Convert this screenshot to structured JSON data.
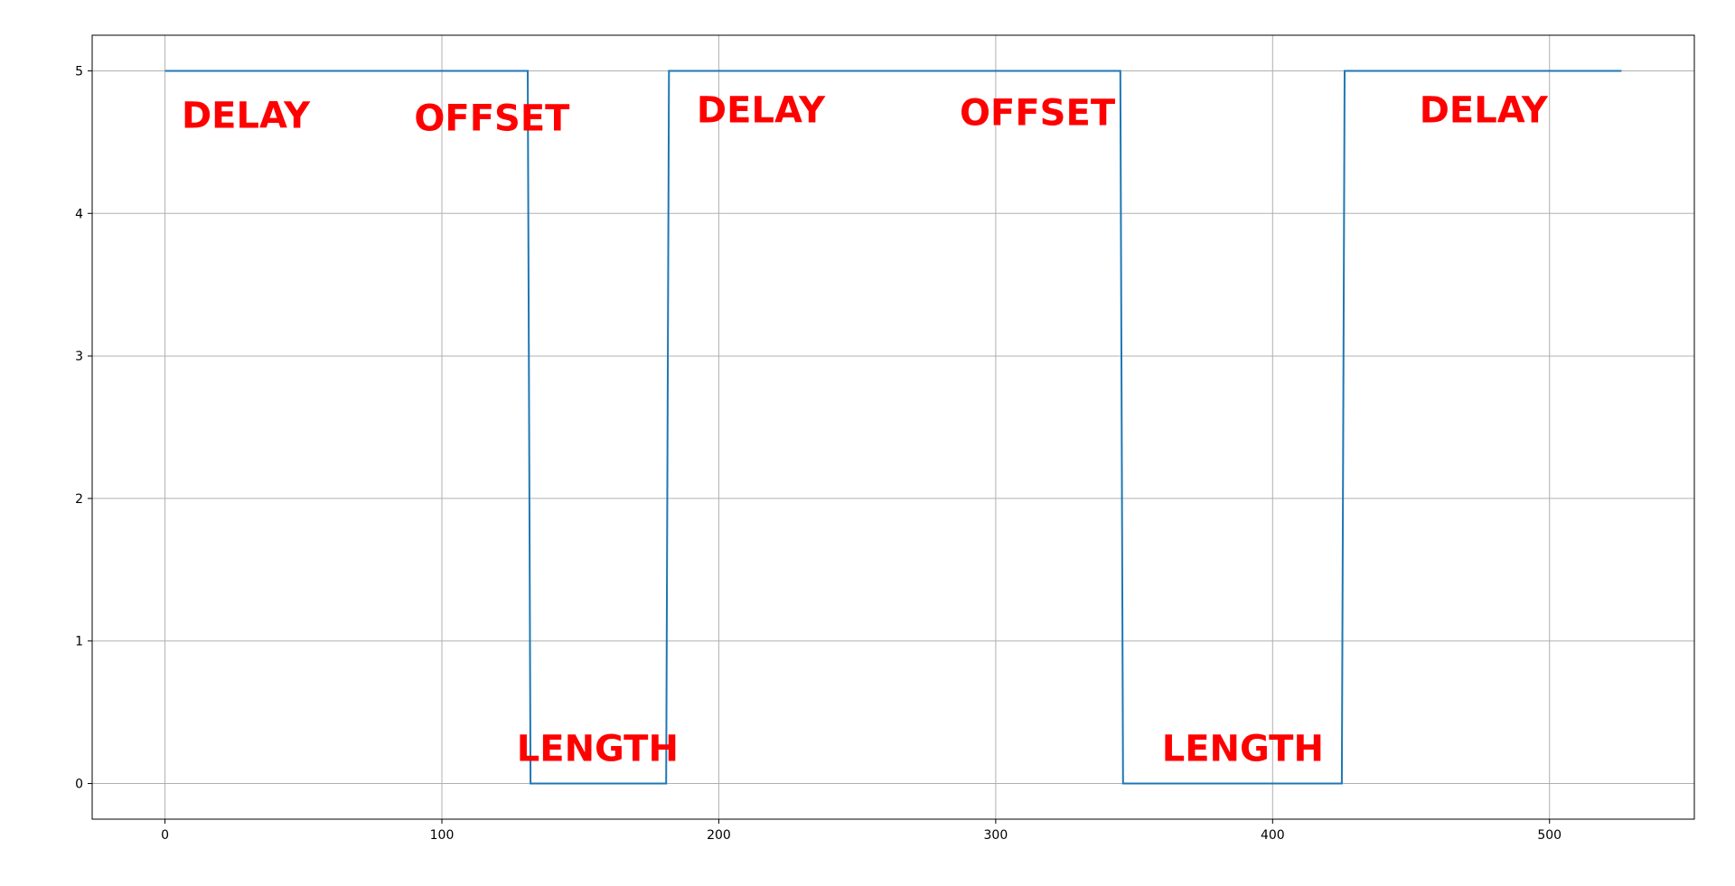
{
  "chart_data": {
    "type": "line",
    "title": "",
    "xlabel": "",
    "ylabel": "",
    "xlim": [
      -26.3,
      552.3
    ],
    "ylim": [
      -0.25,
      5.25
    ],
    "xticks": [
      0,
      100,
      200,
      300,
      400,
      500
    ],
    "yticks": [
      0,
      1,
      2,
      3,
      4,
      5
    ],
    "grid": true,
    "line_color": "#1f77b4",
    "annotation_color": "#ff0000",
    "series": [
      {
        "x": [
          0,
          131,
          132,
          181,
          182,
          345,
          346,
          425,
          426,
          526
        ],
        "y": [
          5,
          5,
          0,
          0,
          5,
          5,
          0,
          0,
          5,
          5
        ]
      }
    ],
    "annotations": [
      {
        "text": "DELAY",
        "x": 6,
        "y": 4.6
      },
      {
        "text": "OFFSET",
        "x": 90,
        "y": 4.58
      },
      {
        "text": "LENGTH",
        "x": 127,
        "y": 0.16
      },
      {
        "text": "DELAY",
        "x": 192,
        "y": 4.64
      },
      {
        "text": "OFFSET",
        "x": 287,
        "y": 4.62
      },
      {
        "text": "LENGTH",
        "x": 360,
        "y": 0.16
      },
      {
        "text": "DELAY",
        "x": 453,
        "y": 4.64
      }
    ]
  }
}
